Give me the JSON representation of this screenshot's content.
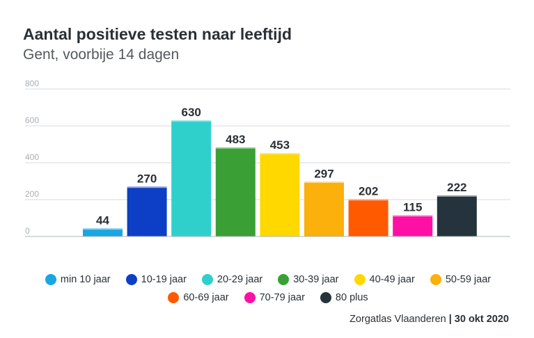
{
  "title": "Aantal positieve testen naar leeftijd",
  "subtitle": "Gent, voorbije 14 dagen",
  "source": {
    "name": "Zorgatlas Vlaanderen",
    "separator": "|",
    "date": "30 okt 2020"
  },
  "chart_data": {
    "type": "bar",
    "title": "Aantal positieve testen naar leeftijd",
    "subtitle": "Gent, voorbije 14 dagen",
    "categories": [
      "min 10 jaar",
      "10-19 jaar",
      "20-29 jaar",
      "30-39 jaar",
      "40-49 jaar",
      "50-59 jaar",
      "60-69 jaar",
      "70-79 jaar",
      "80 plus"
    ],
    "values": [
      44,
      270,
      630,
      483,
      453,
      297,
      202,
      115,
      222
    ],
    "colors": [
      "#1aa6e0",
      "#0c3fc5",
      "#2fd0cc",
      "#3aa035",
      "#ffd800",
      "#fbb00b",
      "#ff5a00",
      "#ff10a4",
      "#25343c"
    ],
    "ylim": [
      0,
      800
    ],
    "yticks": [
      0,
      200,
      400,
      600,
      800
    ],
    "grid": true,
    "xlabel": "",
    "ylabel": "",
    "legend": "bottom"
  }
}
